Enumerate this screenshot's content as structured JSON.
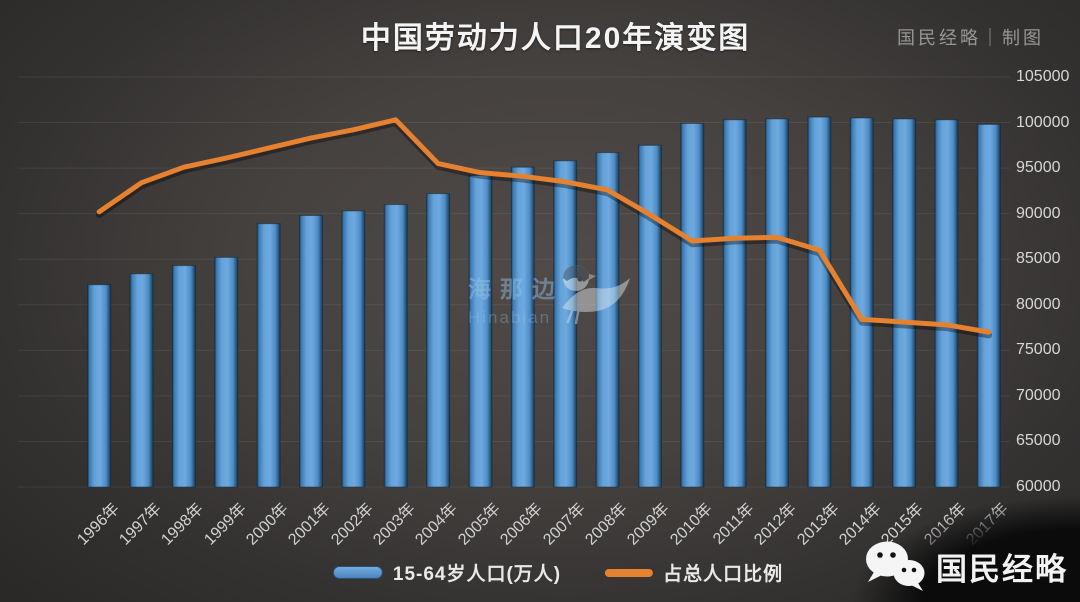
{
  "title": "中国劳动力人口20年演变图",
  "credit": "国民经略｜制图",
  "watermark_center": {
    "cn": "海那边",
    "en": "Hinabian",
    "icon": "bird-logo-icon"
  },
  "watermark_corner": {
    "label": "国民经略",
    "icon": "wechat-icon"
  },
  "legend": [
    {
      "label": "15-64岁人口(万人)",
      "type": "bar",
      "color": "#5b9bd5"
    },
    {
      "label": "占总人口比例",
      "type": "line",
      "color": "#e5812f"
    }
  ],
  "colors": {
    "bar_main": "#5b9bd5",
    "bar_edge": "#1d4363",
    "line": "#e5812f",
    "grid": "rgba(255,255,255,0.07)",
    "tick_text": "#d7d7d7",
    "title_text": "#f4f4f4",
    "background": "#45413f"
  },
  "chart_data": {
    "type": "bar",
    "title": "中国劳动力人口20年演变图",
    "categories": [
      "1996年",
      "1997年",
      "1998年",
      "1999年",
      "2000年",
      "2001年",
      "2002年",
      "2003年",
      "2004年",
      "2005年",
      "2006年",
      "2007年",
      "2008年",
      "2009年",
      "2010年",
      "2011年",
      "2012年",
      "2013年",
      "2014年",
      "2015年",
      "2016年",
      "2017年"
    ],
    "series": [
      {
        "name": "15-64岁人口(万人)",
        "type": "bar",
        "axis": "right",
        "values": [
          82200,
          83400,
          84300,
          85200,
          88900,
          89800,
          90300,
          91000,
          92200,
          94200,
          95100,
          95800,
          96700,
          97500,
          99900,
          100300,
          100400,
          100600,
          100500,
          100400,
          100300,
          99800
        ]
      },
      {
        "name": "占总人口比例",
        "type": "line",
        "axis": "hidden-secondary",
        "note": "secondary axis not labeled; values given as left-axis equivalents of plotted positions",
        "values": [
          90200,
          93400,
          95100,
          96100,
          97200,
          98300,
          99200,
          100300,
          95500,
          94500,
          94100,
          93500,
          92600,
          89900,
          87000,
          87300,
          87400,
          86000,
          78400,
          78100,
          77800,
          77000
        ]
      }
    ],
    "xlabel": "",
    "ylabel": "",
    "ylim": [
      60000,
      105000
    ],
    "yticks": [
      105000,
      100000,
      95000,
      90000,
      85000,
      80000,
      75000,
      70000,
      65000,
      60000
    ],
    "yaxis_side": "right",
    "grid": true,
    "legend_position": "bottom"
  }
}
